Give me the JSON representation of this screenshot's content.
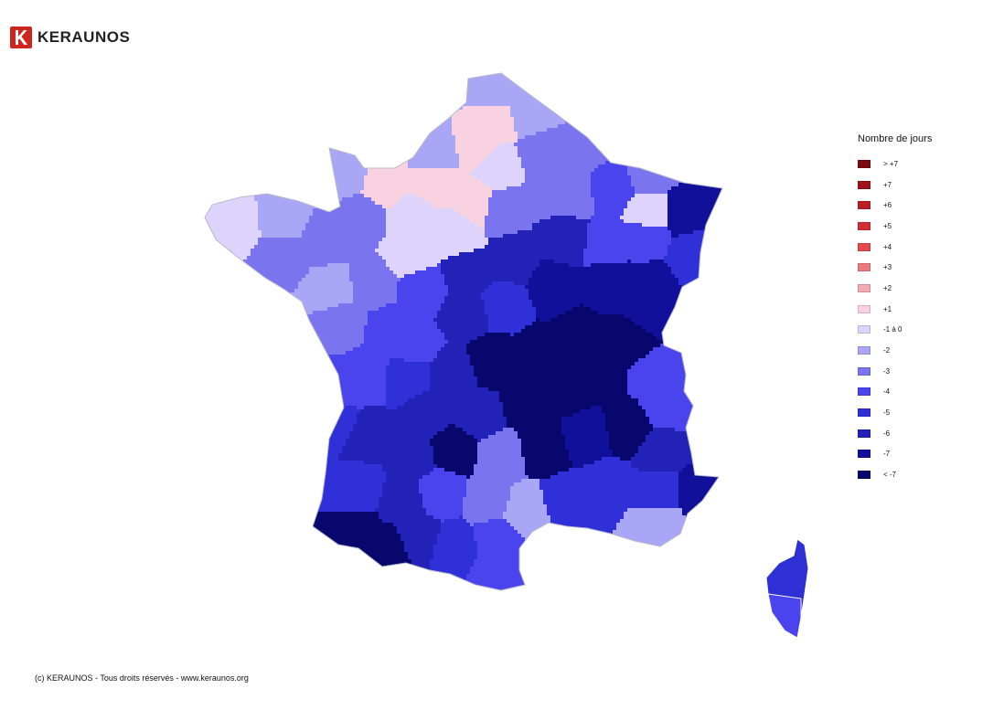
{
  "brand": {
    "name": "KERAUNOS"
  },
  "legend": {
    "title": "Nombre de jours",
    "items": [
      {
        "label": "> +7",
        "color": "#7b0a12"
      },
      {
        "label": "+7",
        "color": "#9e1219"
      },
      {
        "label": "+6",
        "color": "#b91e24"
      },
      {
        "label": "+5",
        "color": "#d12e33"
      },
      {
        "label": "+4",
        "color": "#e34a50"
      },
      {
        "label": "+3",
        "color": "#ec7a80"
      },
      {
        "label": "+2",
        "color": "#f3aab0"
      },
      {
        "label": "+1",
        "color": "#f9d2e2"
      },
      {
        "label": "-1 à 0",
        "color": "#ddd3fb"
      },
      {
        "label": "-2",
        "color": "#aaa6f6"
      },
      {
        "label": "-3",
        "color": "#7a74ef"
      },
      {
        "label": "-4",
        "color": "#4a44ef"
      },
      {
        "label": "-5",
        "color": "#3030d8"
      },
      {
        "label": "-6",
        "color": "#2222b8"
      },
      {
        "label": "-7",
        "color": "#10109a"
      },
      {
        "label": "< -7",
        "color": "#07076e"
      }
    ]
  },
  "footer": {
    "copyright": "(c) KERAUNOS - Tous droits réservés - www.keraunos.org"
  }
}
